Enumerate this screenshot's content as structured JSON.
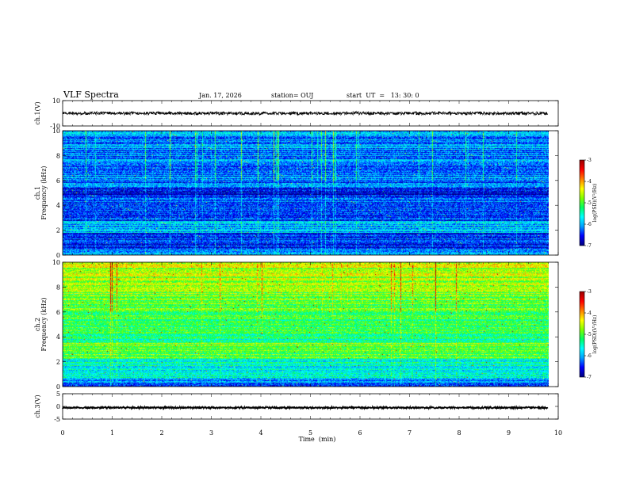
{
  "header": {
    "title": "VLF Spectra",
    "date": "Jan. 17, 2026",
    "station": "station= OUJ",
    "start": "start  UT  =   13: 30: 0"
  },
  "chart_data": {
    "type": "heatmap",
    "xlabel": "Time  (min)",
    "xlim": [
      0,
      10
    ],
    "xticks": [
      "0",
      "1",
      "2",
      "3",
      "4",
      "5",
      "6",
      "7",
      "8",
      "9",
      "10"
    ],
    "panels": [
      {
        "type": "line",
        "ylabel": "ch.1(V)",
        "ylim": [
          -10,
          10
        ],
        "yticks": [
          "10",
          "-10"
        ],
        "mean": 0,
        "noise": 1.2,
        "data_end_min": 9.8
      },
      {
        "type": "heatmap",
        "channel": "ch.1",
        "ylabel": "Frequency (kHz)",
        "ylim": [
          0,
          10
        ],
        "yticks": [
          "0",
          "2",
          "4",
          "6",
          "8",
          "10"
        ],
        "level": "low",
        "data_end_min": 9.8,
        "colorbar": {
          "range": [
            -7,
            -3
          ],
          "ticks": [
            "-3",
            "-4",
            "-5",
            "-6",
            "-7"
          ],
          "label": "log(PSD)(V²/Hz)"
        }
      },
      {
        "type": "heatmap",
        "channel": "ch.2",
        "ylabel": "Frequency (kHz)",
        "ylim": [
          0,
          10
        ],
        "yticks": [
          "0",
          "2",
          "4",
          "6",
          "8",
          "10"
        ],
        "level": "high",
        "data_end_min": 9.8,
        "colorbar": {
          "range": [
            -7,
            -3
          ],
          "ticks": [
            "-3",
            "-4",
            "-5",
            "-6",
            "-7"
          ],
          "label": "log(PSD)(V²/Hz)"
        }
      },
      {
        "type": "line",
        "ylabel": "ch.3(V)",
        "ylim": [
          -5,
          5
        ],
        "yticks": [
          "5",
          "0",
          "-5"
        ],
        "mean": -0.5,
        "noise": 0.25,
        "data_end_min": 9.8
      }
    ],
    "colors": {
      "colormap": [
        "#000080",
        "#0000ff",
        "#00a0ff",
        "#00ffff",
        "#00ff60",
        "#80ff00",
        "#ffff00",
        "#ff8000",
        "#ff0000",
        "#a00000"
      ]
    }
  }
}
